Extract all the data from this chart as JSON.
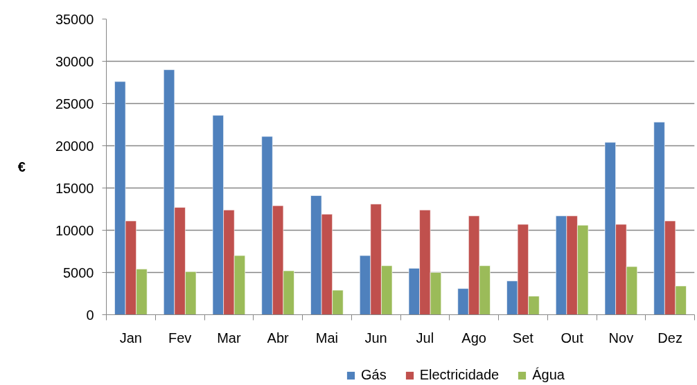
{
  "chart_data": {
    "type": "bar",
    "ylabel": "€",
    "categories": [
      "Jan",
      "Fev",
      "Mar",
      "Abr",
      "Mai",
      "Jun",
      "Jul",
      "Ago",
      "Set",
      "Out",
      "Nov",
      "Dez"
    ],
    "series": [
      {
        "name": "Gás",
        "color": "#4f81bd",
        "values": [
          27600,
          29000,
          23600,
          21100,
          14100,
          7000,
          5500,
          3100,
          4000,
          11700,
          20400,
          22800
        ]
      },
      {
        "name": "Electricidade",
        "color": "#c0504d",
        "values": [
          11100,
          12700,
          12400,
          12900,
          11900,
          13100,
          12400,
          11700,
          10700,
          11700,
          10700,
          11100
        ]
      },
      {
        "name": "Água",
        "color": "#9bbb59",
        "values": [
          5400,
          5100,
          7000,
          5200,
          2900,
          5800,
          5000,
          5800,
          2200,
          10600,
          5700,
          3400
        ]
      }
    ],
    "ylim": [
      0,
      35000
    ],
    "yticks": [
      0,
      5000,
      10000,
      15000,
      20000,
      25000,
      30000,
      35000
    ],
    "grid": "y",
    "legend": "bottom"
  }
}
